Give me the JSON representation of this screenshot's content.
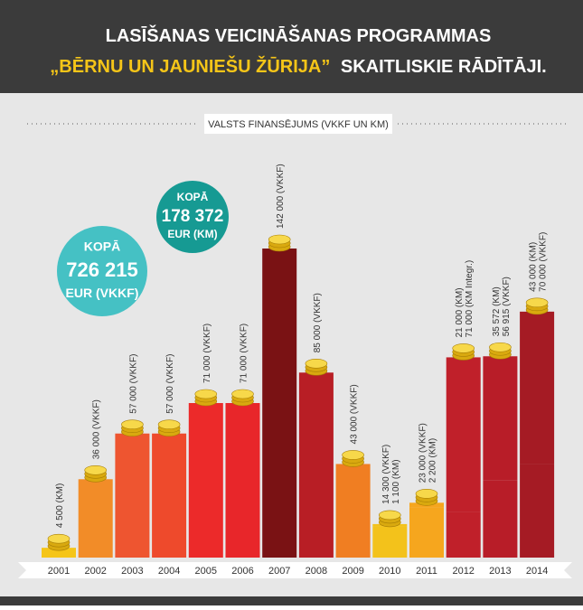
{
  "chart_data": {
    "type": "bar",
    "title_parts": [
      "LASĪŠANAS VEICINĀŠANAS PROGRAMMAS",
      "„BĒRNU UN JAUNIEŠU ŽŪRIJA”",
      "SKAITLISKIE RĀDĪTĀJI."
    ],
    "subtitle": "VALSTS FINANSĒJUMS (VKKF UN KM)",
    "totals": [
      {
        "label": "KOPĀ",
        "amount": "726 215",
        "unit": "EUR (VKKF)",
        "color": "#45c1c4"
      },
      {
        "label": "KOPĀ",
        "amount": "178 372",
        "unit": "EUR (KM)",
        "color": "#169a93"
      }
    ],
    "categories": [
      "2001",
      "2002",
      "2003",
      "2004",
      "2005",
      "2006",
      "2007",
      "2008",
      "2009",
      "2010",
      "2011",
      "2012",
      "2013",
      "2014"
    ],
    "colors": [
      "#f5c518",
      "#f28c28",
      "#ee5530",
      "#ee4a2c",
      "#ec2a2a",
      "#e8262a",
      "#7a1214",
      "#b81e25",
      "#f07e22",
      "#f3c21b",
      "#f6a61e",
      "#c0202a",
      "#b81d28",
      "#a51b24"
    ],
    "series": [
      {
        "values": [
          4500,
          36000,
          57000,
          57000,
          71000,
          71000,
          142000,
          85000,
          43000,
          14300,
          23000,
          21000,
          35572,
          43000
        ],
        "value_labels": [
          "4 500 (KM)",
          "36 000 (VKKF)",
          "57 000 (VKKF)",
          "57 000 (VKKF)",
          "71 000 (VKKF)",
          "71 000 (VKKF)",
          "142 000 (VKKF)",
          "85 000 (VKKF)",
          "43 000 (VKKF)",
          "14 300 (VKKF)",
          "23 000 (VKKF)",
          "21 000 (KM)",
          "35 572 (KM)",
          "43 000 (KM)"
        ]
      },
      {
        "values": [
          null,
          null,
          null,
          null,
          null,
          null,
          null,
          null,
          null,
          1100,
          2200,
          71000,
          56915,
          70000
        ],
        "value_labels": [
          null,
          null,
          null,
          null,
          null,
          null,
          null,
          null,
          null,
          "1 100 (KM)",
          "2 200 (KM)",
          "71 000 (KM Integr.)",
          "56 915 (VKKF)",
          "70 000 (VKKF)"
        ]
      }
    ]
  }
}
